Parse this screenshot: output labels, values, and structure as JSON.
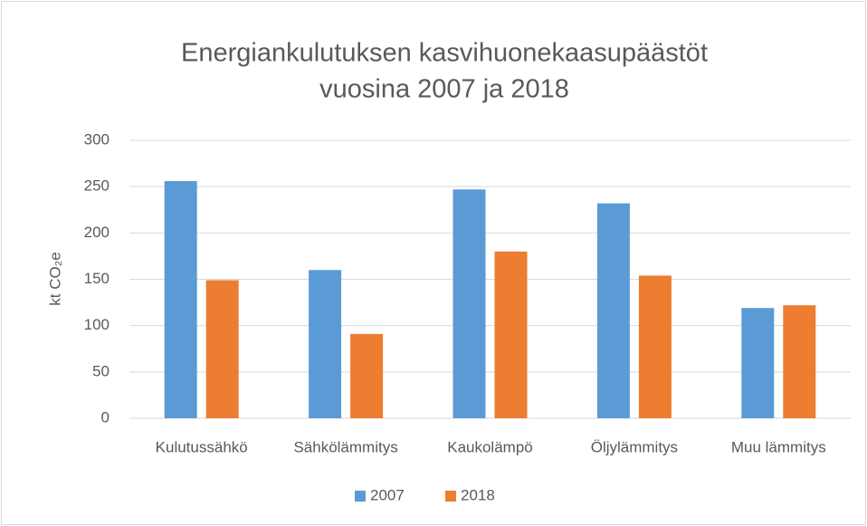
{
  "chart_data": {
    "type": "bar",
    "title": [
      "Energiankulutuksen kasvihuonekaasupäästöt",
      "vuosina 2007 ja 2018"
    ],
    "y_label": "kt CO₂e",
    "categories": [
      "Kulutussähkö",
      "Sähkölämmitys",
      "Kaukolämpö",
      "Öljylämmitys",
      "Muu lämmitys"
    ],
    "series": [
      {
        "name": "2007",
        "color": "#5b9bd5",
        "values": [
          256,
          160,
          247,
          232,
          119
        ]
      },
      {
        "name": "2018",
        "color": "#ed7d31",
        "values": [
          149,
          91,
          180,
          154,
          122
        ]
      }
    ],
    "ylim": [
      0,
      300
    ],
    "yticks": [
      0,
      50,
      100,
      150,
      200,
      250,
      300
    ],
    "grid": true,
    "legend": "bottom"
  }
}
